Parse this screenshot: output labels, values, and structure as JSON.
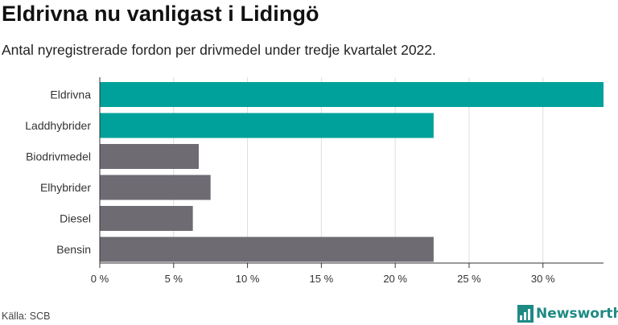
{
  "header": {
    "title": "Eldrivna nu vanligast i Lidingö",
    "subtitle": "Antal nyregistrerade fordon per drivmedel under tredje kvartalet 2022."
  },
  "footer": {
    "source": "Källa: SCB",
    "brand": "Newsworthy"
  },
  "colors": {
    "highlight": "#00a19a",
    "default": "#6e6b73",
    "grid": "#dddddd",
    "axis": "#333333"
  },
  "chart_data": {
    "type": "bar",
    "orientation": "horizontal",
    "categories": [
      "Eldrivna",
      "Laddhybrider",
      "Biodrivmedel",
      "Elhybrider",
      "Diesel",
      "Bensin"
    ],
    "values": [
      34.1,
      22.6,
      6.7,
      7.5,
      6.3,
      22.6
    ],
    "highlighted": [
      true,
      true,
      false,
      false,
      false,
      false
    ],
    "xlim": [
      0,
      34.1
    ],
    "xticks": [
      0,
      5,
      10,
      15,
      20,
      25,
      30
    ],
    "xtick_labels": [
      "0 %",
      "5 %",
      "10 %",
      "15 %",
      "20 %",
      "25 %",
      "30 %"
    ],
    "grid": true
  }
}
